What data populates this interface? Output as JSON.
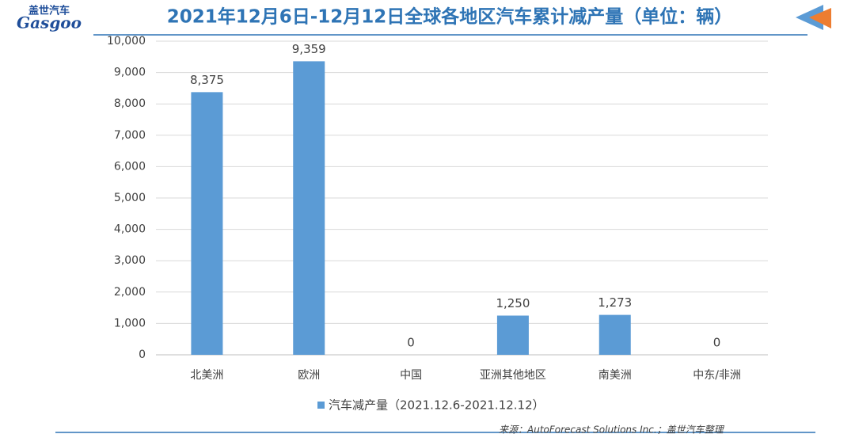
{
  "header": {
    "logo_cn": "盖世汽车",
    "logo_en": "Gasgoo"
  },
  "chart_data": {
    "type": "bar",
    "title": "2021年12月6日-12月12日全球各地区汽车累计减产量（单位：辆）",
    "categories": [
      "北美洲",
      "欧洲",
      "中国",
      "亚洲其他地区",
      "南美洲",
      "中东/非洲"
    ],
    "series": [
      {
        "name": "汽车减产量（2021.12.6-2021.12.12）",
        "color": "#5b9bd5",
        "values": [
          8375,
          9359,
          0,
          1250,
          1273,
          0
        ],
        "value_labels": [
          "8,375",
          "9,359",
          "0",
          "1,250",
          "1,273",
          "0"
        ]
      }
    ],
    "ylim": [
      0,
      10000
    ],
    "yticks": [
      0,
      {
        "value": 1000,
        "label": "1,000"
      },
      {
        "value": 2000,
        "label": "2,000"
      },
      {
        "value": 3000,
        "label": "3,000"
      },
      {
        "value": 4000,
        "label": "4,000"
      },
      {
        "value": 5000,
        "label": "5,000"
      },
      {
        "value": 6000,
        "label": "6,000"
      },
      {
        "value": 7000,
        "label": "7,000"
      },
      {
        "value": 8000,
        "label": "8,000"
      },
      {
        "value": 9000,
        "label": "9,000"
      },
      {
        "value": 10000,
        "label": "10,000"
      }
    ],
    "grid": true,
    "source": "来源：AutoForecast Solutions Inc.；盖世汽车整理"
  }
}
